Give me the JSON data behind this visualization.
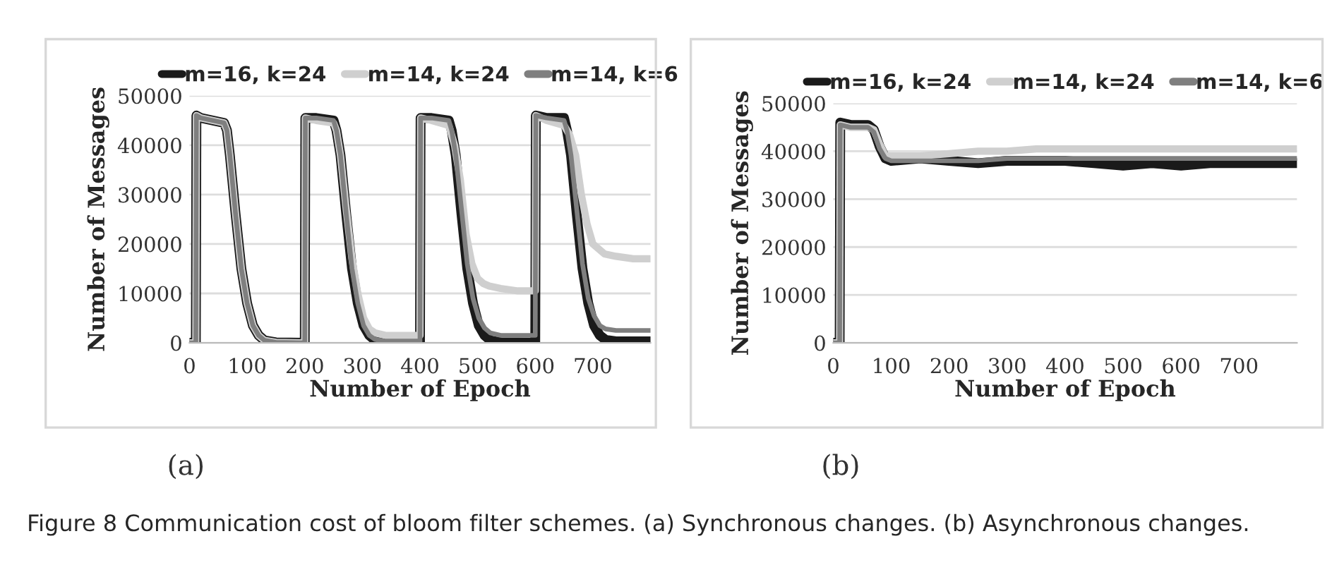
{
  "chart_data": [
    {
      "type": "line",
      "xlabel": "Number of Epoch",
      "ylabel": "Number of Messages",
      "xlim": [
        0,
        800
      ],
      "xticks": [
        0,
        100,
        200,
        300,
        400,
        500,
        600,
        700
      ],
      "ylim": [
        0,
        50000
      ],
      "yticks": [
        0,
        10000,
        20000,
        30000,
        40000,
        50000
      ],
      "grid": "y",
      "legend": "top",
      "annotations": [
        "(a)",
        "Figure 8 Communication cost of bloom filter schemes. (a) Synchronous changes. (b) Asynchronous changes."
      ],
      "series": [
        {
          "name": "m=16, k=24",
          "color": "#1a1a1a",
          "x": [
            0,
            11,
            12,
            20,
            40,
            60,
            65,
            70,
            80,
            90,
            100,
            110,
            120,
            130,
            150,
            199,
            200,
            201,
            220,
            250,
            255,
            262,
            272,
            282,
            292,
            302,
            312,
            322,
            340,
            399,
            400,
            401,
            420,
            450,
            455,
            462,
            472,
            482,
            492,
            502,
            512,
            522,
            540,
            599,
            600,
            601,
            620,
            650,
            655,
            662,
            672,
            682,
            692,
            702,
            712,
            722,
            740,
            799
          ],
          "values": [
            0,
            0,
            46000,
            45500,
            45000,
            44500,
            43000,
            38000,
            26000,
            15000,
            8000,
            3500,
            1500,
            500,
            100,
            0,
            0,
            45500,
            45500,
            45000,
            43000,
            38000,
            26000,
            15000,
            8000,
            3500,
            1500,
            500,
            100,
            0,
            0,
            45500,
            45500,
            45000,
            43000,
            38000,
            26000,
            15000,
            8000,
            3500,
            1500,
            500,
            100,
            0,
            0,
            46000,
            45500,
            45500,
            43000,
            38000,
            26000,
            15000,
            8000,
            3500,
            1500,
            600,
            300,
            300
          ]
        },
        {
          "name": "m=14, k=24",
          "color": "#cfcfcf",
          "x": [
            0,
            11,
            12,
            20,
            40,
            60,
            65,
            70,
            80,
            90,
            100,
            110,
            120,
            130,
            150,
            199,
            200,
            201,
            220,
            250,
            255,
            262,
            272,
            282,
            292,
            302,
            312,
            322,
            340,
            399,
            400,
            401,
            420,
            450,
            460,
            470,
            480,
            490,
            500,
            510,
            520,
            540,
            570,
            599,
            600,
            601,
            620,
            650,
            660,
            670,
            680,
            690,
            700,
            710,
            720,
            740,
            770,
            799
          ],
          "values": [
            0,
            0,
            46000,
            45500,
            45000,
            44500,
            43000,
            38000,
            26000,
            15000,
            8000,
            3500,
            1500,
            500,
            100,
            0,
            0,
            45500,
            45000,
            44500,
            43000,
            38000,
            27000,
            17000,
            10000,
            5000,
            2800,
            2000,
            1500,
            1500,
            1500,
            45500,
            45000,
            44000,
            40000,
            33000,
            22000,
            16000,
            13000,
            12000,
            11500,
            11000,
            10500,
            10500,
            10500,
            46000,
            45000,
            44000,
            42000,
            38000,
            30000,
            24000,
            20000,
            19000,
            18000,
            17500,
            17000,
            17000
          ]
        },
        {
          "name": "m=14, k=6",
          "color": "#7f7f7f",
          "x": [
            0,
            11,
            12,
            20,
            40,
            60,
            65,
            70,
            80,
            90,
            100,
            110,
            120,
            130,
            150,
            199,
            200,
            201,
            220,
            250,
            255,
            262,
            272,
            282,
            292,
            302,
            312,
            322,
            340,
            399,
            400,
            401,
            420,
            450,
            455,
            462,
            472,
            482,
            492,
            502,
            512,
            522,
            540,
            599,
            600,
            601,
            620,
            650,
            655,
            662,
            672,
            682,
            692,
            702,
            712,
            722,
            740,
            799
          ],
          "values": [
            0,
            0,
            46000,
            45500,
            45000,
            44500,
            43000,
            38000,
            26000,
            15000,
            8000,
            3500,
            1500,
            500,
            100,
            0,
            0,
            45500,
            45500,
            45000,
            43000,
            38000,
            26000,
            15000,
            8000,
            3500,
            1500,
            700,
            300,
            300,
            300,
            45500,
            45500,
            45000,
            43000,
            38000,
            27000,
            16000,
            9000,
            5000,
            3000,
            2000,
            1500,
            1500,
            1500,
            46000,
            45500,
            45000,
            43000,
            38000,
            27000,
            16000,
            9000,
            5500,
            3500,
            2800,
            2500,
            2500
          ]
        }
      ]
    },
    {
      "type": "line",
      "xlabel": "Number of Epoch",
      "ylabel": "Number of Messages",
      "xlim": [
        0,
        800
      ],
      "xticks": [
        0,
        100,
        200,
        300,
        400,
        500,
        600,
        700
      ],
      "ylim": [
        0,
        50000
      ],
      "yticks": [
        0,
        10000,
        20000,
        30000,
        40000,
        50000
      ],
      "grid": "y",
      "legend": "top",
      "annotations": [
        "(b)"
      ],
      "series": [
        {
          "name": "m=16, k=24",
          "color": "#1a1a1a",
          "x": [
            0,
            11,
            12,
            30,
            60,
            70,
            80,
            90,
            100,
            150,
            200,
            250,
            300,
            350,
            400,
            450,
            500,
            550,
            600,
            650,
            700,
            750,
            799
          ],
          "values": [
            0,
            0,
            46000,
            45500,
            45500,
            44500,
            41000,
            38500,
            38000,
            38500,
            38000,
            37500,
            38000,
            38000,
            38000,
            37500,
            37000,
            37500,
            37000,
            37500,
            37500,
            37500,
            37500
          ]
        },
        {
          "name": "m=14, k=24",
          "color": "#cfcfcf",
          "x": [
            0,
            11,
            12,
            30,
            60,
            70,
            80,
            90,
            100,
            150,
            200,
            250,
            300,
            350,
            400,
            450,
            500,
            550,
            600,
            650,
            700,
            750,
            799
          ],
          "values": [
            0,
            0,
            45500,
            45000,
            45000,
            44500,
            41500,
            39000,
            39000,
            39000,
            39500,
            40000,
            40000,
            40500,
            40500,
            40500,
            40500,
            40500,
            40500,
            40500,
            40500,
            40500,
            40500
          ]
        },
        {
          "name": "m=14, k=6",
          "color": "#7f7f7f",
          "x": [
            0,
            11,
            12,
            30,
            60,
            70,
            80,
            90,
            100,
            150,
            200,
            250,
            300,
            350,
            400,
            450,
            500,
            550,
            600,
            650,
            700,
            750,
            799
          ],
          "values": [
            0,
            0,
            45500,
            45000,
            45000,
            44000,
            40500,
            38500,
            38000,
            38000,
            38000,
            38000,
            38500,
            38500,
            38500,
            38500,
            38500,
            38500,
            38500,
            38500,
            38500,
            38500,
            38500
          ]
        }
      ]
    }
  ]
}
